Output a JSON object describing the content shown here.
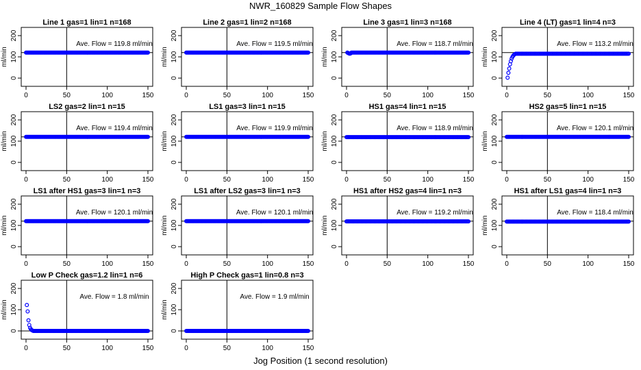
{
  "title": "NWR_160829  Sample Flow Shapes",
  "xlabel": "Jog Position (1 second resolution)",
  "ylabel": "ml/min",
  "flow_prefix": "Ave. Flow = ",
  "flow_unit": "  ml/min",
  "colors": {
    "points": "#0000ff",
    "axes": "#000000"
  },
  "chart_data": [
    {
      "type": "scatter",
      "title": "Line 1 gas=1 lin=1 n=168",
      "ave_flow": "119.8",
      "xlim": [
        0,
        150
      ],
      "ylim": [
        0,
        200
      ],
      "x_ticks": [
        0,
        50,
        100,
        150
      ],
      "y_ticks": [
        0,
        100,
        200
      ],
      "hline": 120,
      "vline": 50,
      "start_points": [],
      "flat_value": 120,
      "flat_from": 0,
      "flat_to": 150
    },
    {
      "type": "scatter",
      "title": "Line 2 gas=1 lin=2 n=168",
      "ave_flow": "119.5",
      "xlim": [
        0,
        150
      ],
      "ylim": [
        0,
        200
      ],
      "x_ticks": [
        0,
        50,
        100,
        150
      ],
      "y_ticks": [
        0,
        100,
        200
      ],
      "hline": 120,
      "vline": 50,
      "start_points": [],
      "flat_value": 120,
      "flat_from": 0,
      "flat_to": 150
    },
    {
      "type": "scatter",
      "title": "Line 3 gas=1 lin=3 n=168",
      "ave_flow": "118.7",
      "xlim": [
        0,
        150
      ],
      "ylim": [
        0,
        200
      ],
      "x_ticks": [
        0,
        50,
        100,
        150
      ],
      "y_ticks": [
        0,
        100,
        200
      ],
      "hline": 120,
      "vline": 50,
      "start_points": [
        [
          1,
          120
        ],
        [
          2,
          118
        ],
        [
          3,
          116
        ],
        [
          4,
          115
        ],
        [
          5,
          116
        ]
      ],
      "flat_value": 120,
      "flat_from": 6,
      "flat_to": 150
    },
    {
      "type": "scatter",
      "title": "Line 4 (LT) gas=1 lin=4 n=3",
      "ave_flow": "113.2",
      "xlim": [
        0,
        150
      ],
      "ylim": [
        0,
        200
      ],
      "x_ticks": [
        0,
        50,
        100,
        150
      ],
      "y_ticks": [
        0,
        100,
        200
      ],
      "hline": 120,
      "vline": 50,
      "start_points": [
        [
          1,
          2
        ],
        [
          2,
          25
        ],
        [
          3,
          45
        ],
        [
          4,
          65
        ],
        [
          5,
          80
        ],
        [
          6,
          92
        ],
        [
          7,
          100
        ],
        [
          8,
          106
        ],
        [
          9,
          110
        ],
        [
          10,
          113
        ]
      ],
      "flat_value": 115,
      "flat_from": 11,
      "flat_to": 150
    },
    {
      "type": "scatter",
      "title": "LS2 gas=2 lin=1 n=15",
      "ave_flow": "119.4",
      "xlim": [
        0,
        150
      ],
      "ylim": [
        0,
        200
      ],
      "x_ticks": [
        0,
        50,
        100,
        150
      ],
      "y_ticks": [
        0,
        100,
        200
      ],
      "hline": 120,
      "vline": 50,
      "start_points": [],
      "flat_value": 120,
      "flat_from": 0,
      "flat_to": 150
    },
    {
      "type": "scatter",
      "title": "LS1 gas=3 lin=1 n=15",
      "ave_flow": "119.9",
      "xlim": [
        0,
        150
      ],
      "ylim": [
        0,
        200
      ],
      "x_ticks": [
        0,
        50,
        100,
        150
      ],
      "y_ticks": [
        0,
        100,
        200
      ],
      "hline": 120,
      "vline": 50,
      "start_points": [],
      "flat_value": 120,
      "flat_from": 0,
      "flat_to": 150
    },
    {
      "type": "scatter",
      "title": "HS1 gas=4 lin=1 n=15",
      "ave_flow": "118.9",
      "xlim": [
        0,
        150
      ],
      "ylim": [
        0,
        200
      ],
      "x_ticks": [
        0,
        50,
        100,
        150
      ],
      "y_ticks": [
        0,
        100,
        200
      ],
      "hline": 120,
      "vline": 50,
      "start_points": [],
      "flat_value": 119,
      "flat_from": 0,
      "flat_to": 150
    },
    {
      "type": "scatter",
      "title": "HS2 gas=5 lin=1 n=15",
      "ave_flow": "120.1",
      "xlim": [
        0,
        150
      ],
      "ylim": [
        0,
        200
      ],
      "x_ticks": [
        0,
        50,
        100,
        150
      ],
      "y_ticks": [
        0,
        100,
        200
      ],
      "hline": 120,
      "vline": 50,
      "start_points": [],
      "flat_value": 120,
      "flat_from": 0,
      "flat_to": 150
    },
    {
      "type": "scatter",
      "title": "LS1 after HS1 gas=3 lin=1 n=3",
      "ave_flow": "120.1",
      "xlim": [
        0,
        150
      ],
      "ylim": [
        0,
        200
      ],
      "x_ticks": [
        0,
        50,
        100,
        150
      ],
      "y_ticks": [
        0,
        100,
        200
      ],
      "hline": 120,
      "vline": 50,
      "start_points": [],
      "flat_value": 120,
      "flat_from": 0,
      "flat_to": 150
    },
    {
      "type": "scatter",
      "title": "LS1 after LS2 gas=3 lin=1 n=3",
      "ave_flow": "120.1",
      "xlim": [
        0,
        150
      ],
      "ylim": [
        0,
        200
      ],
      "x_ticks": [
        0,
        50,
        100,
        150
      ],
      "y_ticks": [
        0,
        100,
        200
      ],
      "hline": 120,
      "vline": 50,
      "start_points": [],
      "flat_value": 120,
      "flat_from": 0,
      "flat_to": 150
    },
    {
      "type": "scatter",
      "title": "HS1 after HS2 gas=4 lin=1 n=3",
      "ave_flow": "119.2",
      "xlim": [
        0,
        150
      ],
      "ylim": [
        0,
        200
      ],
      "x_ticks": [
        0,
        50,
        100,
        150
      ],
      "y_ticks": [
        0,
        100,
        200
      ],
      "hline": 120,
      "vline": 50,
      "start_points": [],
      "flat_value": 119,
      "flat_from": 0,
      "flat_to": 150
    },
    {
      "type": "scatter",
      "title": "HS1 after LS1 gas=4 lin=1 n=3",
      "ave_flow": "118.4",
      "xlim": [
        0,
        150
      ],
      "ylim": [
        0,
        200
      ],
      "x_ticks": [
        0,
        50,
        100,
        150
      ],
      "y_ticks": [
        0,
        100,
        200
      ],
      "hline": 120,
      "vline": 50,
      "start_points": [],
      "flat_value": 118,
      "flat_from": 0,
      "flat_to": 150
    },
    {
      "type": "scatter",
      "title": "Low P Check gas=1.2 lin=1 n=6",
      "ave_flow": "1.8",
      "xlim": [
        0,
        150
      ],
      "ylim": [
        0,
        200
      ],
      "x_ticks": [
        0,
        50,
        100,
        150
      ],
      "y_ticks": [
        0,
        100,
        200
      ],
      "hline": 0,
      "vline": 50,
      "start_points": [
        [
          1,
          122
        ],
        [
          2,
          92
        ],
        [
          3,
          50
        ],
        [
          4,
          28
        ],
        [
          5,
          15
        ],
        [
          6,
          8
        ],
        [
          7,
          4
        ],
        [
          8,
          2
        ]
      ],
      "flat_value": 0,
      "flat_from": 9,
      "flat_to": 150
    },
    {
      "type": "scatter",
      "title": "High P Check gas=1 lin=0.8 n=3",
      "ave_flow": "1.9",
      "xlim": [
        0,
        150
      ],
      "ylim": [
        0,
        200
      ],
      "x_ticks": [
        0,
        50,
        100,
        150
      ],
      "y_ticks": [
        0,
        100,
        200
      ],
      "hline": 0,
      "vline": 50,
      "start_points": [],
      "flat_value": 0,
      "flat_from": 0,
      "flat_to": 150
    }
  ]
}
